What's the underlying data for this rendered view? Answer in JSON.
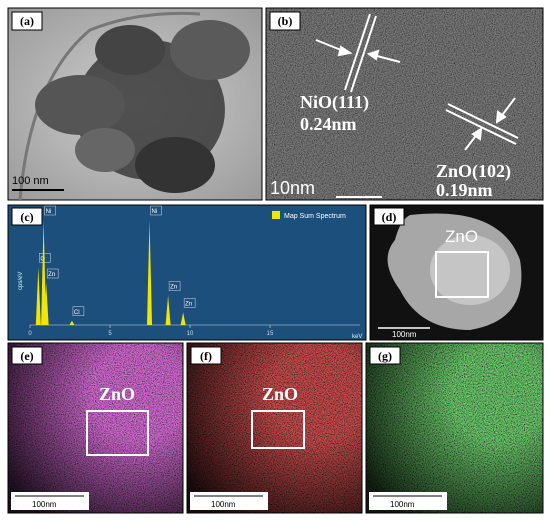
{
  "panels": [
    {
      "label": "(a)",
      "scale_bar": "100 nm"
    },
    {
      "label": "(b)",
      "annotations": [
        "NiO(111)",
        "0.24nm",
        "ZnO(102)",
        "0.19nm"
      ],
      "scale_bar": "10nm"
    },
    {
      "label": "(c)",
      "spectrum": {
        "legend": "Map Sum Spectrum",
        "y_label": "cps/eV",
        "x_label": "keV",
        "xlim": [
          0,
          20
        ],
        "xticks": [
          0,
          5,
          10,
          15
        ],
        "ylim": [
          0,
          100
        ],
        "color": "#f2e600",
        "peaks": {
          "labels": [
            "O",
            "Ni",
            "Zn",
            "Cl",
            "Ni",
            "Zn",
            "Zn"
          ],
          "x": [
            0.52,
            0.85,
            1.01,
            2.62,
            7.47,
            8.63,
            9.57
          ],
          "values": [
            55,
            100,
            40,
            4,
            100,
            28,
            12
          ]
        }
      }
    },
    {
      "label": "(d)",
      "region": "ZnO",
      "scale_bar": "100nm"
    },
    {
      "label": "(e)",
      "region": "ZnO",
      "scale_bar": "100nm"
    },
    {
      "label": "(f)",
      "region": "ZnO",
      "scale_bar": "100nm"
    },
    {
      "label": "(g)",
      "scale_bar": "100nm"
    }
  ]
}
